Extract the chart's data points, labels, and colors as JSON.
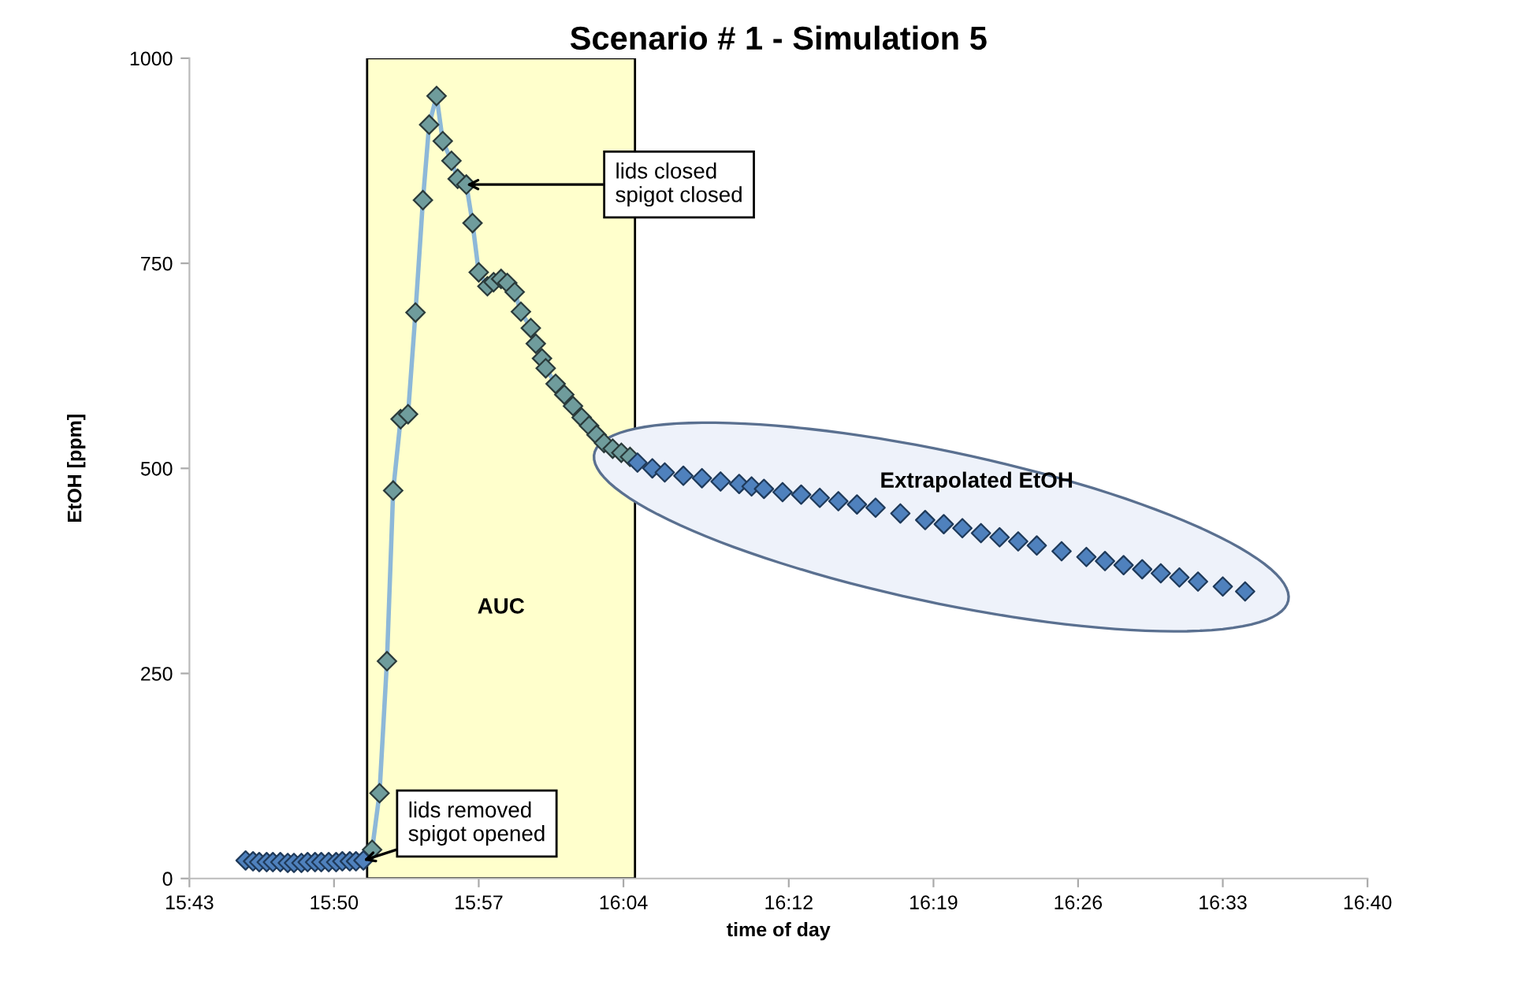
{
  "chart_data": {
    "type": "line",
    "title": "Scenario # 1 - Simulation 5",
    "xlabel": "time of day",
    "ylabel": "EtOH [ppm]",
    "xlim": [
      15.7167,
      16.6667
    ],
    "xticks": [
      {
        "value": 15.7167,
        "label": "15:43"
      },
      {
        "value": 15.8333,
        "label": "15:50"
      },
      {
        "value": 15.95,
        "label": "15:57"
      },
      {
        "value": 16.0667,
        "label": "16:04"
      },
      {
        "value": 16.2,
        "label": "16:12"
      },
      {
        "value": 16.3167,
        "label": "16:19"
      },
      {
        "value": 16.4333,
        "label": "16:26"
      },
      {
        "value": 16.55,
        "label": "16:33"
      },
      {
        "value": 16.6667,
        "label": "16:40"
      }
    ],
    "ylim": [
      0,
      1000
    ],
    "yticks": [
      0,
      250,
      500,
      750,
      1000
    ],
    "grid": false,
    "legend": false,
    "marker": "diamond",
    "bands": [
      {
        "axis": "x",
        "from": 15.86,
        "to": 16.076,
        "label": "AUC",
        "color": "#ffffcc"
      }
    ],
    "annotations": [
      {
        "text": "lids closed\nspigot closed",
        "x": 15.94,
        "y": 846
      },
      {
        "text": "lids removed\nspigot opened",
        "x": 15.857,
        "y": 22
      },
      "Extrapolated EtOH"
    ],
    "series": [
      {
        "color": "#6f9c9c",
        "x": [
          15.864,
          15.87,
          15.876,
          15.881,
          15.887,
          15.893,
          15.899,
          15.905,
          15.91,
          15.916,
          15.921,
          15.928,
          15.933,
          15.94,
          15.945,
          15.95,
          15.957,
          15.962,
          15.968,
          15.973,
          15.979,
          15.984,
          15.992,
          15.996,
          16.001,
          16.004,
          16.012,
          16.019,
          16.026,
          16.033,
          16.039,
          16.045,
          16.051,
          16.058,
          16.065,
          16.072
        ],
        "values": [
          35,
          104,
          265,
          473,
          560,
          566,
          690,
          827,
          919,
          954,
          899,
          875,
          853,
          846,
          799,
          739,
          722,
          727,
          731,
          726,
          715,
          691,
          671,
          652,
          634,
          622,
          603,
          590,
          576,
          562,
          552,
          541,
          531,
          524,
          519,
          514
        ]
      },
      {
        "type": "scatter",
        "color": "#4f81bd",
        "x": [
          15.762,
          15.768,
          15.773,
          15.779,
          15.784,
          15.79,
          15.796,
          15.801,
          15.807,
          15.812,
          15.818,
          15.823,
          15.829,
          15.835,
          15.84,
          15.846,
          15.851,
          15.857,
          16.078,
          16.09,
          16.1,
          16.115,
          16.13,
          16.145,
          16.16,
          16.17,
          16.18,
          16.195,
          16.21,
          16.225,
          16.24,
          16.255,
          16.27,
          16.29,
          16.31,
          16.325,
          16.34,
          16.355,
          16.37,
          16.385,
          16.4,
          16.42,
          16.44,
          16.455,
          16.47,
          16.485,
          16.5,
          16.515,
          16.53,
          16.55,
          16.568
        ],
        "values": [
          22,
          21,
          20,
          20,
          20,
          20,
          19,
          19,
          19,
          20,
          20,
          20,
          20,
          20,
          21,
          21,
          21,
          22,
          507,
          500,
          495,
          491,
          488,
          484,
          481,
          478,
          475,
          471,
          468,
          464,
          460,
          456,
          452,
          445,
          437,
          432,
          427,
          421,
          416,
          411,
          406,
          399,
          392,
          387,
          382,
          377,
          372,
          367,
          362,
          356,
          350
        ]
      }
    ]
  }
}
